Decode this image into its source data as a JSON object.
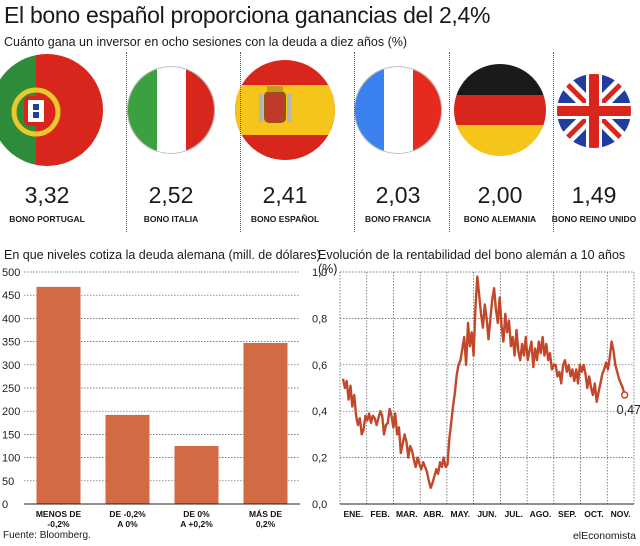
{
  "title": "El bono español proporciona ganancias del 2,4%",
  "subtitle": "Cuánto gana un inversor en ocho sesiones con la deuda a diez años (%)",
  "flags": [
    {
      "name": "portugal",
      "value": "3,32",
      "label": "BONO PORTUGAL"
    },
    {
      "name": "italia",
      "value": "2,52",
      "label": "BONO ITALIA"
    },
    {
      "name": "espana",
      "value": "2,41",
      "label": "BONO ESPAÑOL"
    },
    {
      "name": "francia",
      "value": "2,03",
      "label": "BONO FRANCIA"
    },
    {
      "name": "alemania",
      "value": "2,00",
      "label": "BONO ALEMANIA"
    },
    {
      "name": "reino-unido",
      "value": "1,49",
      "label": "BONO REINO UNIDO"
    }
  ],
  "colors": {
    "accent": "#d26a44",
    "line": "#c2482b",
    "grid": "#444444"
  },
  "source": "Fuente: Bloomberg.",
  "brand": "elEconomista",
  "chart_data": [
    {
      "type": "bar",
      "title": "En que niveles cotiza la deuda alemana (mill. de dólares)",
      "categories": [
        [
          "MENOS DE",
          "-0,2%"
        ],
        [
          "DE -0,2%",
          "A 0%"
        ],
        [
          "DE 0%",
          "A +0,2%"
        ],
        [
          "MÁS DE",
          "0,2%"
        ]
      ],
      "values": [
        468,
        192,
        125,
        347
      ],
      "ylim": [
        0,
        500
      ],
      "yticks": [
        0,
        50,
        100,
        150,
        200,
        250,
        300,
        350,
        400,
        450,
        500
      ],
      "grid": true
    },
    {
      "type": "line",
      "title": "Evolución de la rentabilidad del bono alemán a 10 años (%)",
      "x_labels": [
        "ENE.",
        "FEB.",
        "MAR.",
        "ABR.",
        "MAY.",
        "JUN.",
        "JUL.",
        "AGO.",
        "SEP.",
        "OCT.",
        "NOV."
      ],
      "ylim": [
        0,
        1
      ],
      "yticks": [
        "0,0",
        "0,2",
        "0,4",
        "0,6",
        "0,8",
        "1,0"
      ],
      "yticks_values": [
        0,
        0.2,
        0.4,
        0.6,
        0.8,
        1.0
      ],
      "end_label": "0,47",
      "grid": true,
      "values": [
        0.54,
        0.5,
        0.53,
        0.45,
        0.51,
        0.42,
        0.47,
        0.38,
        0.34,
        0.37,
        0.3,
        0.32,
        0.38,
        0.36,
        0.39,
        0.35,
        0.38,
        0.37,
        0.34,
        0.37,
        0.4,
        0.38,
        0.3,
        0.34,
        0.35,
        0.41,
        0.38,
        0.33,
        0.39,
        0.3,
        0.33,
        0.22,
        0.26,
        0.3,
        0.27,
        0.2,
        0.25,
        0.23,
        0.19,
        0.16,
        0.2,
        0.17,
        0.15,
        0.18,
        0.16,
        0.14,
        0.1,
        0.07,
        0.09,
        0.12,
        0.15,
        0.13,
        0.18,
        0.16,
        0.2,
        0.16,
        0.17,
        0.28,
        0.35,
        0.42,
        0.48,
        0.56,
        0.6,
        0.62,
        0.67,
        0.72,
        0.6,
        0.78,
        0.68,
        0.74,
        0.64,
        0.84,
        0.98,
        0.9,
        0.82,
        0.76,
        0.86,
        0.8,
        0.71,
        0.8,
        0.88,
        0.93,
        0.84,
        0.78,
        0.89,
        0.77,
        0.7,
        0.82,
        0.74,
        0.79,
        0.68,
        0.72,
        0.64,
        0.75,
        0.66,
        0.62,
        0.69,
        0.64,
        0.72,
        0.62,
        0.66,
        0.7,
        0.59,
        0.67,
        0.62,
        0.7,
        0.65,
        0.72,
        0.64,
        0.69,
        0.62,
        0.65,
        0.58,
        0.6,
        0.6,
        0.55,
        0.57,
        0.52,
        0.6,
        0.62,
        0.57,
        0.6,
        0.55,
        0.58,
        0.53,
        0.58,
        0.52,
        0.6,
        0.57,
        0.6,
        0.56,
        0.5,
        0.55,
        0.5,
        0.47,
        0.52,
        0.44,
        0.48,
        0.52,
        0.56,
        0.58,
        0.61,
        0.58,
        0.63,
        0.7,
        0.66,
        0.6,
        0.57,
        0.54,
        0.52,
        0.5,
        0.47
      ]
    }
  ]
}
